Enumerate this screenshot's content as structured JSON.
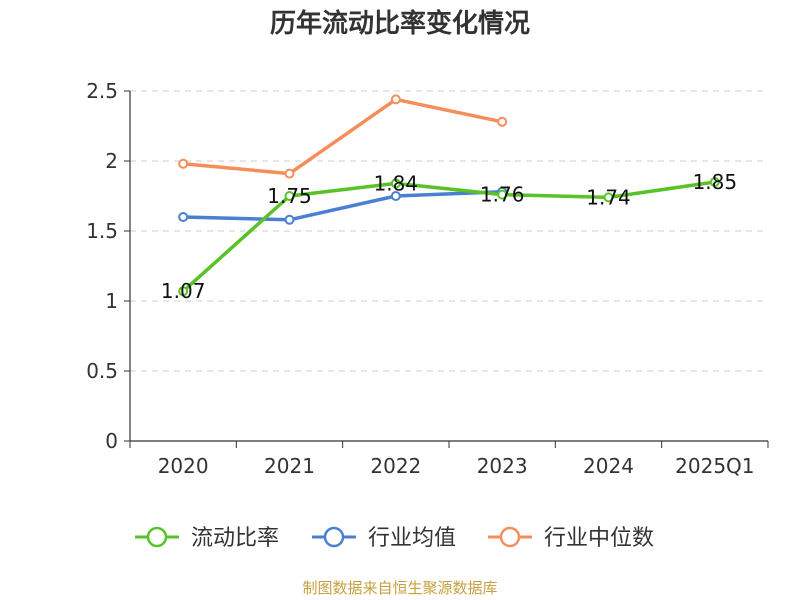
{
  "chart_data": {
    "type": "line",
    "title": "历年流动比率变化情况",
    "categories": [
      "2020",
      "2021",
      "2022",
      "2023",
      "2024",
      "2025Q1"
    ],
    "ylim": [
      0,
      2.5
    ],
    "yticks": [
      "0",
      "0.5",
      "1",
      "1.5",
      "2",
      "2.5"
    ],
    "grid": true,
    "legend_position": "bottom",
    "series": [
      {
        "name": "流动比率",
        "color": "#5ac229",
        "values": [
          1.07,
          1.75,
          1.84,
          1.76,
          1.74,
          1.85
        ],
        "labels": [
          "1.07",
          "1.75",
          "1.84",
          "1.76",
          "1.74",
          "1.85"
        ]
      },
      {
        "name": "行业均值",
        "color": "#4a7fd4",
        "values": [
          1.6,
          1.58,
          1.75,
          1.78,
          null,
          null
        ]
      },
      {
        "name": "行业中位数",
        "color": "#f58e5a",
        "values": [
          1.98,
          1.91,
          2.44,
          2.28,
          null,
          null
        ]
      }
    ],
    "source": "制图数据来自恒生聚源数据库"
  }
}
